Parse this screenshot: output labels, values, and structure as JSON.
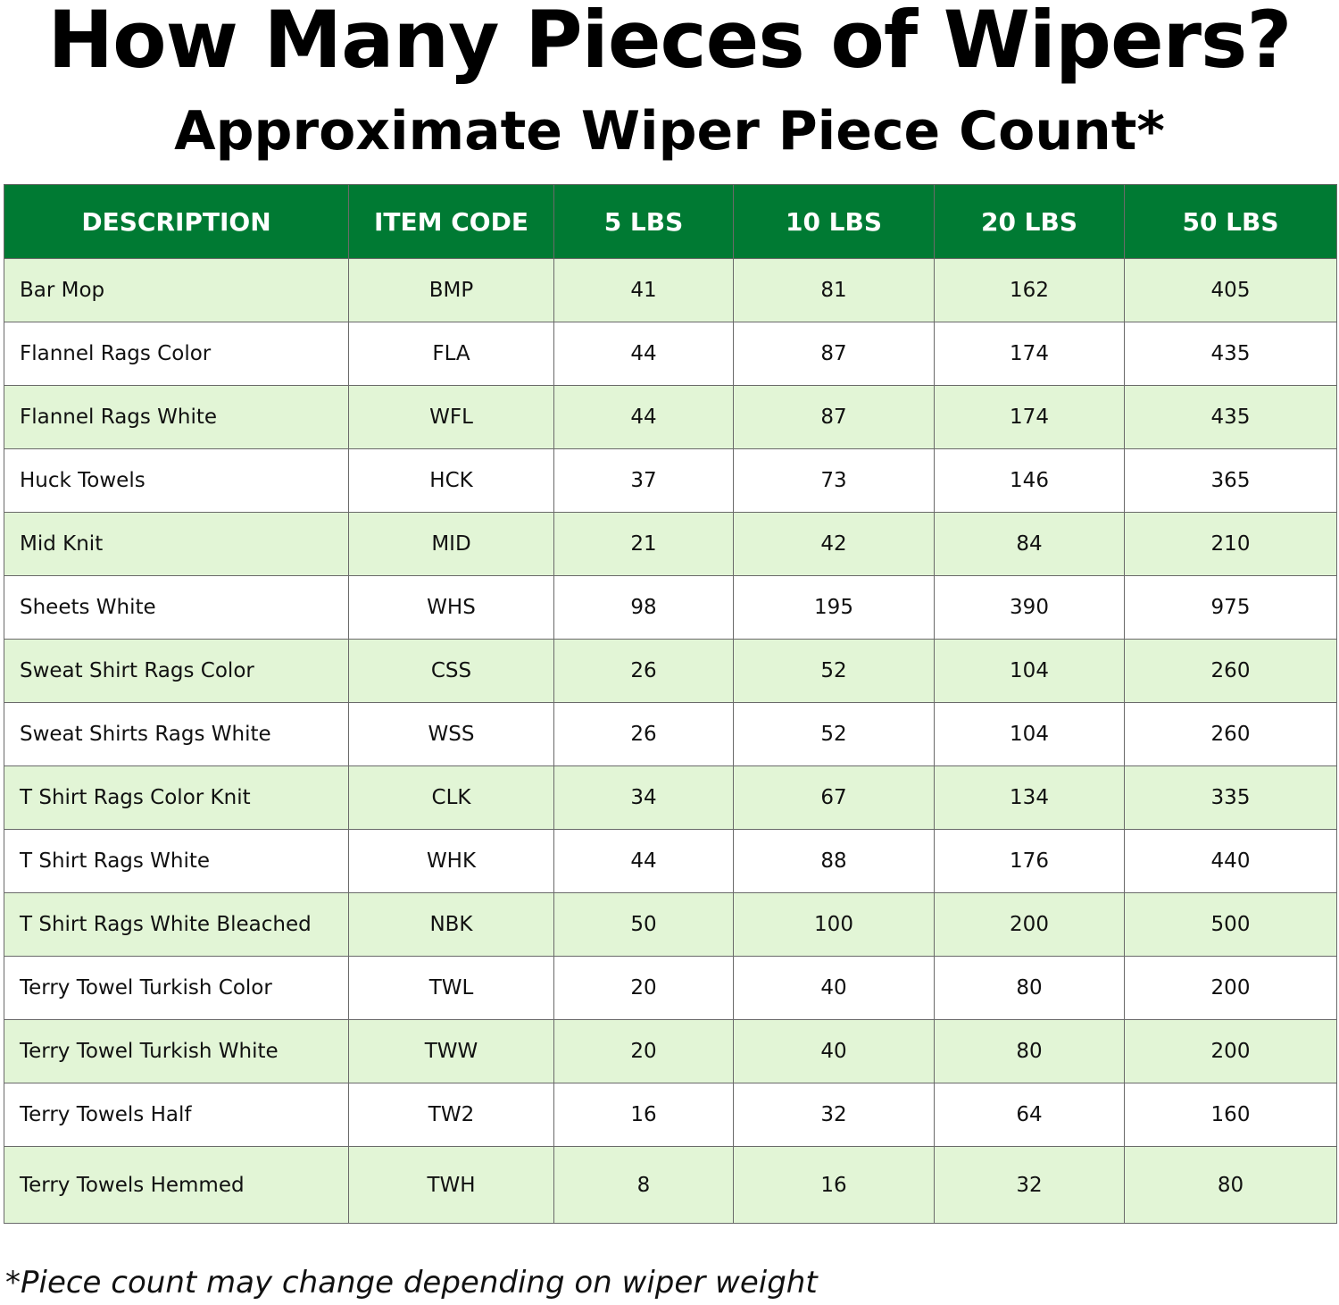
{
  "title": "How Many Pieces of Wipers?",
  "subtitle": "Approximate Wiper Piece Count*",
  "colors": {
    "header_green": "#007a33",
    "row_shade": "#e2f5d6"
  },
  "table": {
    "headers": [
      "DESCRIPTION",
      "ITEM CODE",
      "5 LBS",
      "10 LBS",
      "20 LBS",
      "50 LBS"
    ],
    "rows": [
      [
        "Bar Mop",
        "BMP",
        "41",
        "81",
        "162",
        "405"
      ],
      [
        "Flannel Rags Color",
        "FLA",
        "44",
        "87",
        "174",
        "435"
      ],
      [
        "Flannel Rags White",
        "WFL",
        "44",
        "87",
        "174",
        "435"
      ],
      [
        "Huck Towels",
        "HCK",
        "37",
        "73",
        "146",
        "365"
      ],
      [
        "Mid Knit",
        "MID",
        "21",
        "42",
        "84",
        "210"
      ],
      [
        "Sheets White",
        "WHS",
        "98",
        "195",
        "390",
        "975"
      ],
      [
        "Sweat Shirt Rags Color",
        "CSS",
        "26",
        "52",
        "104",
        "260"
      ],
      [
        "Sweat Shirts Rags White",
        "WSS",
        "26",
        "52",
        "104",
        "260"
      ],
      [
        "T Shirt Rags Color Knit",
        "CLK",
        "34",
        "67",
        "134",
        "335"
      ],
      [
        "T Shirt Rags White",
        "WHK",
        "44",
        "88",
        "176",
        "440"
      ],
      [
        "T Shirt Rags White Bleached",
        "NBK",
        "50",
        "100",
        "200",
        "500"
      ],
      [
        "Terry Towel Turkish Color",
        "TWL",
        "20",
        "40",
        "80",
        "200"
      ],
      [
        "Terry Towel Turkish White",
        "TWW",
        "20",
        "40",
        "80",
        "200"
      ],
      [
        "Terry Towels Half",
        "TW2",
        "16",
        "32",
        "64",
        "160"
      ],
      [
        "Terry Towels Hemmed",
        "TWH",
        "8",
        "16",
        "32",
        "80"
      ]
    ]
  },
  "footnote": "*Piece count may change depending on wiper weight"
}
